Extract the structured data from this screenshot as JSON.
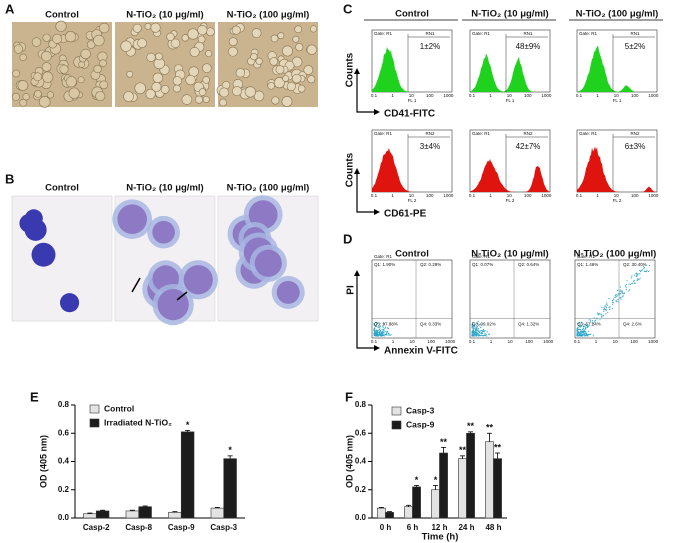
{
  "panel_labels": [
    "A",
    "B",
    "C",
    "D",
    "E",
    "F"
  ],
  "panel_a": {
    "titles": [
      "Control",
      "N-TiO₂ (10 μg/ml)",
      "N-TiO₂ (100 μg/ml)"
    ]
  },
  "panel_b": {
    "titles": [
      "Control",
      "N-TiO₂ (10 μg/ml)",
      "N-TiO₂ (100 μg/ml)"
    ]
  },
  "panel_c": {
    "titles": [
      "Control",
      "N-TiO₂ (10 μg/ml)",
      "N-TiO₂ (100 μg/ml)"
    ],
    "y_label": "Counts",
    "rows": [
      {
        "x_label": "CD41-FITC",
        "gate": "Gate: R1",
        "region": "RN1",
        "axis": "FL 1",
        "values": [
          "1±2%",
          "48±9%",
          "5±2%"
        ]
      },
      {
        "x_label": "CD61-PE",
        "gate": "Gate: R1",
        "region": "RN2",
        "axis": "FL 2",
        "values": [
          "3±4%",
          "42±7%",
          "6±3%"
        ]
      }
    ],
    "ticks": [
      "0.1",
      "1",
      "10",
      "100",
      "1000"
    ]
  },
  "panel_d": {
    "titles": [
      "Control",
      "N-TiO₂ (10 μg/ml)",
      "N-TiO₂ (100 μg/ml)"
    ],
    "y_label": "PI",
    "x_label": "Annexin V-FITC",
    "gate": "Gate: R1",
    "quadrants": [
      [
        "Q1: 1.90%",
        "Q2: 0.29%",
        "Q3: 97.88%",
        "Q4: 0.33%"
      ],
      [
        "Q1: 0.07%",
        "Q2: 0.64%",
        "Q3: 99.02%",
        "Q4: 1.32%"
      ],
      [
        "Q1: 1.46%",
        "Q2: 30.40%",
        "Q3: 67.24%",
        "Q4: 2.6%"
      ]
    ],
    "ticks": [
      "0.1",
      "1",
      "10",
      "100",
      "1000"
    ]
  },
  "chart_data": [
    {
      "type": "bar",
      "y_label": "OD (405 nm)",
      "categories": [
        "Casp-2",
        "Casp-8",
        "Casp-9",
        "Casp-3"
      ],
      "series": [
        {
          "name": "Control",
          "color": "#e3e3e3",
          "values": [
            0.03,
            0.05,
            0.04,
            0.07
          ],
          "errors": [
            0.005,
            0.005,
            0.005,
            0.005
          ]
        },
        {
          "name": "Irradiated N-TiO₂",
          "color": "#1c1c1c",
          "values": [
            0.05,
            0.08,
            0.61,
            0.42
          ],
          "errors": [
            0.005,
            0.005,
            0.01,
            0.02
          ],
          "annotations": [
            null,
            null,
            "*",
            "*"
          ]
        }
      ],
      "ylim": [
        0,
        0.8
      ],
      "yticks": [
        {
          "value": 0,
          "label": "0.0"
        },
        0.2,
        0.4,
        0.6,
        0.8
      ]
    },
    {
      "type": "bar",
      "y_label": "OD (405 nm)",
      "x_label": "Time (h)",
      "categories": [
        "0 h",
        "6 h",
        "12 h",
        "24 h",
        "48 h"
      ],
      "series": [
        {
          "name": "Casp-3",
          "color": "#e3e3e3",
          "values": [
            0.07,
            0.08,
            0.2,
            0.42,
            0.54
          ],
          "errors": [
            0.005,
            0.01,
            0.03,
            0.02,
            0.06
          ],
          "annotations": [
            null,
            null,
            "*",
            "**",
            "**"
          ]
        },
        {
          "name": "Casp-9",
          "color": "#1c1c1c",
          "values": [
            0.04,
            0.22,
            0.46,
            0.6,
            0.42
          ],
          "errors": [
            0.005,
            0.01,
            0.04,
            0.01,
            0.04
          ],
          "annotations": [
            null,
            "*",
            "**",
            "**",
            "**"
          ]
        }
      ],
      "ylim": [
        0,
        0.8
      ],
      "yticks": [
        {
          "value": 0,
          "label": "0.0"
        },
        0.2,
        0.4,
        0.6,
        0.8
      ]
    }
  ]
}
